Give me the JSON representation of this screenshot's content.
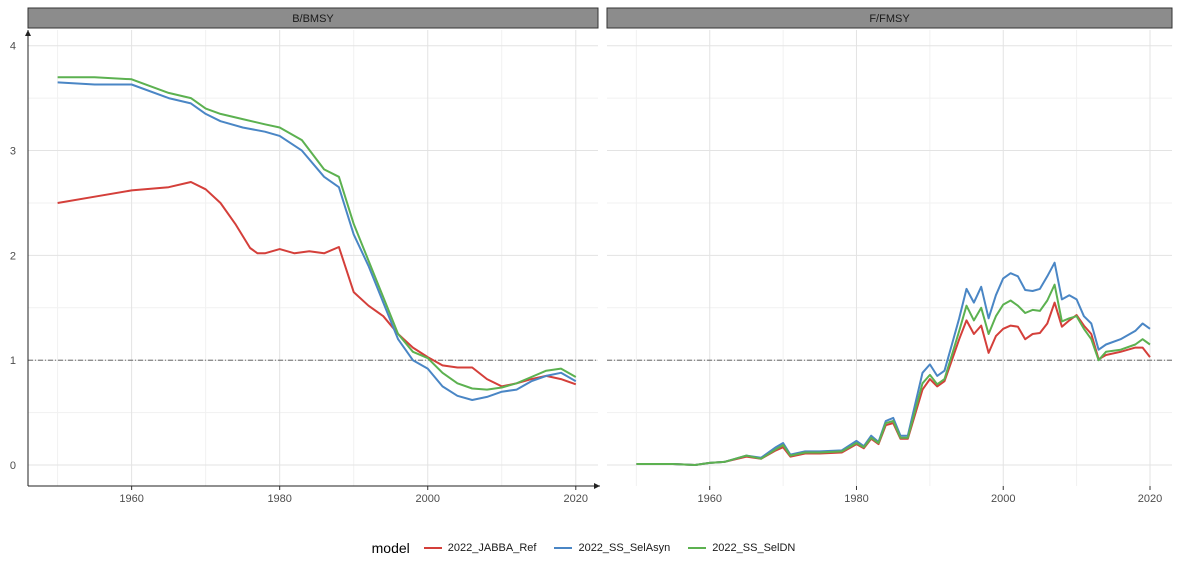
{
  "chart_data": {
    "type": "line",
    "legend_position": "bottom",
    "legend_title": "model",
    "series_colors": {
      "2022_JABBA_Ref": "#d43f3a",
      "2022_SS_SelAsyn": "#4a86c5",
      "2022_SS_SelDN": "#5cb150"
    },
    "reference_line": 1,
    "panels": [
      {
        "title": "B/BMSY",
        "xlim": [
          1946,
          2023
        ],
        "ylim": [
          -0.2,
          4.15
        ],
        "xticks": [
          1960,
          1980,
          2000,
          2020
        ],
        "yticks": [
          0,
          1,
          2,
          3,
          4
        ],
        "series": [
          {
            "name": "2022_JABBA_Ref",
            "x": [
              1950,
              1955,
              1960,
              1965,
              1968,
              1970,
              1972,
              1974,
              1976,
              1977,
              1978,
              1980,
              1982,
              1984,
              1986,
              1988,
              1990,
              1992,
              1994,
              1996,
              1998,
              2000,
              2002,
              2004,
              2006,
              2008,
              2010,
              2012,
              2014,
              2016,
              2018,
              2020
            ],
            "y": [
              2.5,
              2.56,
              2.62,
              2.65,
              2.7,
              2.63,
              2.5,
              2.3,
              2.07,
              2.02,
              2.02,
              2.06,
              2.02,
              2.04,
              2.02,
              2.08,
              1.65,
              1.52,
              1.42,
              1.25,
              1.12,
              1.03,
              0.95,
              0.93,
              0.93,
              0.82,
              0.75,
              0.78,
              0.82,
              0.85,
              0.82,
              0.77
            ]
          },
          {
            "name": "2022_SS_SelAsyn",
            "x": [
              1950,
              1955,
              1960,
              1965,
              1968,
              1970,
              1972,
              1975,
              1978,
              1980,
              1983,
              1986,
              1988,
              1990,
              1992,
              1994,
              1996,
              1998,
              2000,
              2002,
              2004,
              2006,
              2008,
              2010,
              2012,
              2014,
              2016,
              2018,
              2020
            ],
            "y": [
              3.65,
              3.63,
              3.63,
              3.5,
              3.45,
              3.35,
              3.28,
              3.22,
              3.18,
              3.14,
              3.0,
              2.75,
              2.65,
              2.2,
              1.9,
              1.55,
              1.2,
              1.0,
              0.92,
              0.75,
              0.66,
              0.62,
              0.65,
              0.7,
              0.72,
              0.8,
              0.85,
              0.88,
              0.8
            ]
          },
          {
            "name": "2022_SS_SelDN",
            "x": [
              1950,
              1955,
              1960,
              1965,
              1968,
              1970,
              1972,
              1975,
              1978,
              1980,
              1983,
              1986,
              1988,
              1990,
              1992,
              1994,
              1996,
              1998,
              2000,
              2002,
              2004,
              2006,
              2008,
              2010,
              2012,
              2014,
              2016,
              2018,
              2020
            ],
            "y": [
              3.7,
              3.7,
              3.68,
              3.55,
              3.5,
              3.4,
              3.35,
              3.3,
              3.25,
              3.22,
              3.1,
              2.82,
              2.75,
              2.3,
              1.95,
              1.6,
              1.25,
              1.08,
              1.02,
              0.88,
              0.78,
              0.73,
              0.72,
              0.74,
              0.78,
              0.84,
              0.9,
              0.92,
              0.84
            ]
          }
        ]
      },
      {
        "title": "F/FMSY",
        "xlim": [
          1946,
          2023
        ],
        "ylim": [
          -0.2,
          4.15
        ],
        "xticks": [
          1960,
          1980,
          2000,
          2020
        ],
        "yticks": [
          0,
          1,
          2,
          3,
          4
        ],
        "series": [
          {
            "name": "2022_JABBA_Ref",
            "x": [
              1950,
              1955,
              1958,
              1960,
              1962,
              1965,
              1967,
              1969,
              1970,
              1971,
              1973,
              1975,
              1978,
              1980,
              1981,
              1982,
              1983,
              1984,
              1985,
              1986,
              1987,
              1989,
              1990,
              1991,
              1992,
              1993,
              1994,
              1995,
              1996,
              1997,
              1998,
              1999,
              2000,
              2001,
              2002,
              2003,
              2004,
              2005,
              2006,
              2007,
              2008,
              2009,
              2010,
              2011,
              2012,
              2013,
              2014,
              2016,
              2018,
              2019,
              2020
            ],
            "y": [
              0.01,
              0.01,
              0.0,
              0.02,
              0.03,
              0.08,
              0.06,
              0.14,
              0.17,
              0.08,
              0.11,
              0.11,
              0.12,
              0.2,
              0.16,
              0.25,
              0.2,
              0.38,
              0.4,
              0.25,
              0.25,
              0.72,
              0.82,
              0.75,
              0.8,
              1.0,
              1.2,
              1.38,
              1.25,
              1.33,
              1.07,
              1.23,
              1.3,
              1.33,
              1.32,
              1.2,
              1.25,
              1.26,
              1.35,
              1.55,
              1.32,
              1.38,
              1.43,
              1.33,
              1.25,
              1.01,
              1.05,
              1.08,
              1.12,
              1.12,
              1.03
            ]
          },
          {
            "name": "2022_SS_SelAsyn",
            "x": [
              1950,
              1955,
              1958,
              1960,
              1962,
              1965,
              1967,
              1969,
              1970,
              1971,
              1973,
              1975,
              1978,
              1980,
              1981,
              1982,
              1983,
              1984,
              1985,
              1986,
              1987,
              1989,
              1990,
              1991,
              1992,
              1993,
              1994,
              1995,
              1996,
              1997,
              1998,
              1999,
              2000,
              2001,
              2002,
              2003,
              2004,
              2005,
              2006,
              2007,
              2008,
              2009,
              2010,
              2011,
              2012,
              2013,
              2014,
              2016,
              2018,
              2019,
              2020
            ],
            "y": [
              0.01,
              0.01,
              0.0,
              0.02,
              0.03,
              0.09,
              0.07,
              0.17,
              0.21,
              0.1,
              0.13,
              0.13,
              0.14,
              0.23,
              0.18,
              0.28,
              0.22,
              0.42,
              0.45,
              0.28,
              0.28,
              0.88,
              0.96,
              0.85,
              0.9,
              1.15,
              1.4,
              1.68,
              1.55,
              1.7,
              1.4,
              1.62,
              1.78,
              1.83,
              1.8,
              1.67,
              1.66,
              1.68,
              1.8,
              1.93,
              1.58,
              1.62,
              1.58,
              1.42,
              1.35,
              1.1,
              1.15,
              1.2,
              1.28,
              1.35,
              1.3
            ]
          },
          {
            "name": "2022_SS_SelDN",
            "x": [
              1950,
              1955,
              1958,
              1960,
              1962,
              1965,
              1967,
              1969,
              1970,
              1971,
              1973,
              1975,
              1978,
              1980,
              1981,
              1982,
              1983,
              1984,
              1985,
              1986,
              1987,
              1989,
              1990,
              1991,
              1992,
              1993,
              1994,
              1995,
              1996,
              1997,
              1998,
              1999,
              2000,
              2001,
              2002,
              2003,
              2004,
              2005,
              2006,
              2007,
              2008,
              2009,
              2010,
              2011,
              2012,
              2013,
              2014,
              2016,
              2018,
              2019,
              2020
            ],
            "y": [
              0.01,
              0.01,
              0.0,
              0.02,
              0.03,
              0.09,
              0.06,
              0.15,
              0.19,
              0.09,
              0.12,
              0.12,
              0.13,
              0.21,
              0.17,
              0.26,
              0.21,
              0.4,
              0.42,
              0.26,
              0.26,
              0.78,
              0.86,
              0.77,
              0.82,
              1.05,
              1.28,
              1.52,
              1.38,
              1.5,
              1.25,
              1.42,
              1.53,
              1.57,
              1.52,
              1.45,
              1.48,
              1.47,
              1.57,
              1.72,
              1.37,
              1.4,
              1.42,
              1.3,
              1.2,
              1.0,
              1.08,
              1.1,
              1.15,
              1.2,
              1.15
            ]
          }
        ]
      }
    ]
  }
}
